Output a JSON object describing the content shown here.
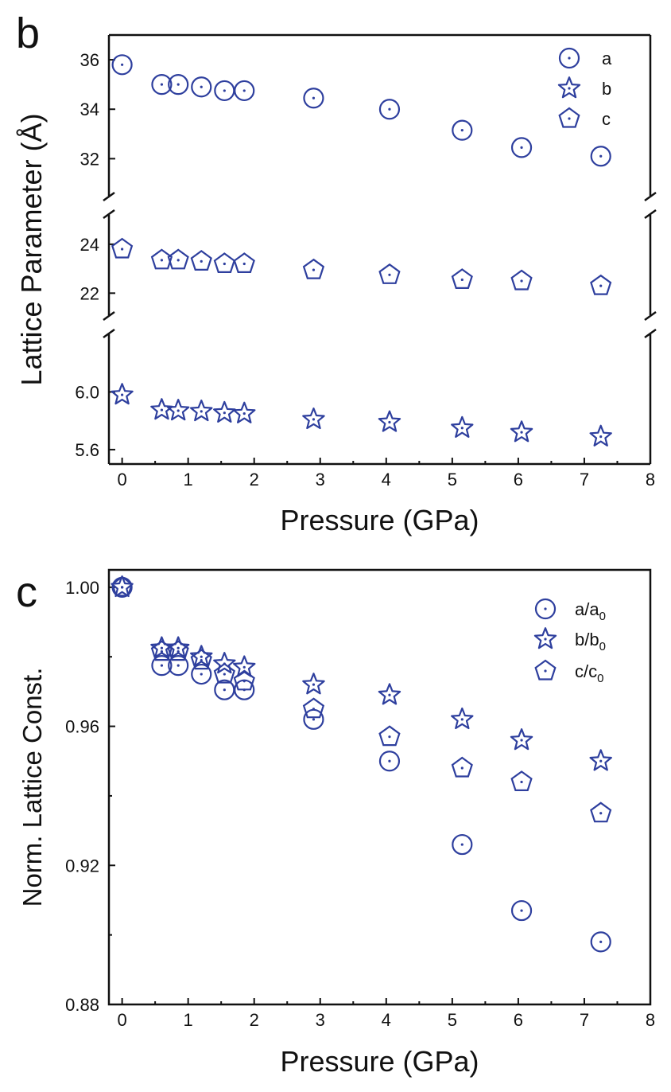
{
  "colors": {
    "marker": "#2e3f9e",
    "axis": "#111111"
  },
  "chart_data": [
    {
      "panel": "b",
      "type": "scatter",
      "xlabel": "Pressure (GPa)",
      "ylabel": "Lattice Parameter (Å)",
      "xlim": [
        -0.2,
        8
      ],
      "xticks": [
        0,
        1,
        2,
        3,
        4,
        5,
        6,
        7,
        8
      ],
      "grid": false,
      "legend_position": "top-right",
      "broken_axis": true,
      "segments": [
        {
          "ylim": [
            30.5,
            37
          ],
          "yticks": [
            32,
            34,
            36
          ],
          "series": [
            "a"
          ]
        },
        {
          "ylim": [
            21.1,
            25.2
          ],
          "yticks": [
            22,
            24
          ],
          "series": [
            "c"
          ]
        },
        {
          "ylim": [
            5.5,
            6.4
          ],
          "yticks": [
            5.6,
            6.0
          ],
          "series": [
            "b"
          ]
        }
      ],
      "x": [
        0,
        0.6,
        0.85,
        1.2,
        1.55,
        1.85,
        2.9,
        4.05,
        5.15,
        6.05,
        7.25
      ],
      "series": [
        {
          "name": "a",
          "marker": "circle",
          "values": [
            35.8,
            35.0,
            35.0,
            34.9,
            34.75,
            34.75,
            34.45,
            34.0,
            33.15,
            32.45,
            32.1
          ]
        },
        {
          "name": "b",
          "marker": "star",
          "values": [
            5.98,
            5.875,
            5.87,
            5.865,
            5.855,
            5.85,
            5.81,
            5.79,
            5.75,
            5.72,
            5.69
          ]
        },
        {
          "name": "c",
          "marker": "pentagon",
          "values": [
            23.8,
            23.35,
            23.35,
            23.3,
            23.2,
            23.2,
            22.95,
            22.75,
            22.55,
            22.5,
            22.3
          ]
        }
      ]
    },
    {
      "panel": "c",
      "type": "scatter",
      "xlabel": "Pressure (GPa)",
      "ylabel": "Norm. Lattice Const.",
      "xlim": [
        -0.2,
        8
      ],
      "ylim": [
        0.88,
        1.005
      ],
      "xticks": [
        0,
        1,
        2,
        3,
        4,
        5,
        6,
        7,
        8
      ],
      "yticks": [
        0.88,
        0.92,
        0.96,
        1.0
      ],
      "grid": false,
      "legend_position": "top-right",
      "x": [
        0,
        0.6,
        0.85,
        1.2,
        1.55,
        1.85,
        2.9,
        4.05,
        5.15,
        6.05,
        7.25
      ],
      "series": [
        {
          "name": "a/a",
          "sub": "0",
          "marker": "circle",
          "values": [
            1.0,
            0.9775,
            0.9775,
            0.975,
            0.9705,
            0.9705,
            0.962,
            0.95,
            0.926,
            0.907,
            0.898
          ]
        },
        {
          "name": "b/b",
          "sub": "0",
          "marker": "star",
          "values": [
            1.0,
            0.9825,
            0.9825,
            0.98,
            0.978,
            0.977,
            0.972,
            0.969,
            0.962,
            0.956,
            0.95
          ]
        },
        {
          "name": "c/c",
          "sub": "0",
          "marker": "pentagon",
          "values": [
            1.0,
            0.9815,
            0.9815,
            0.979,
            0.975,
            0.973,
            0.965,
            0.957,
            0.948,
            0.944,
            0.935
          ]
        }
      ]
    }
  ]
}
